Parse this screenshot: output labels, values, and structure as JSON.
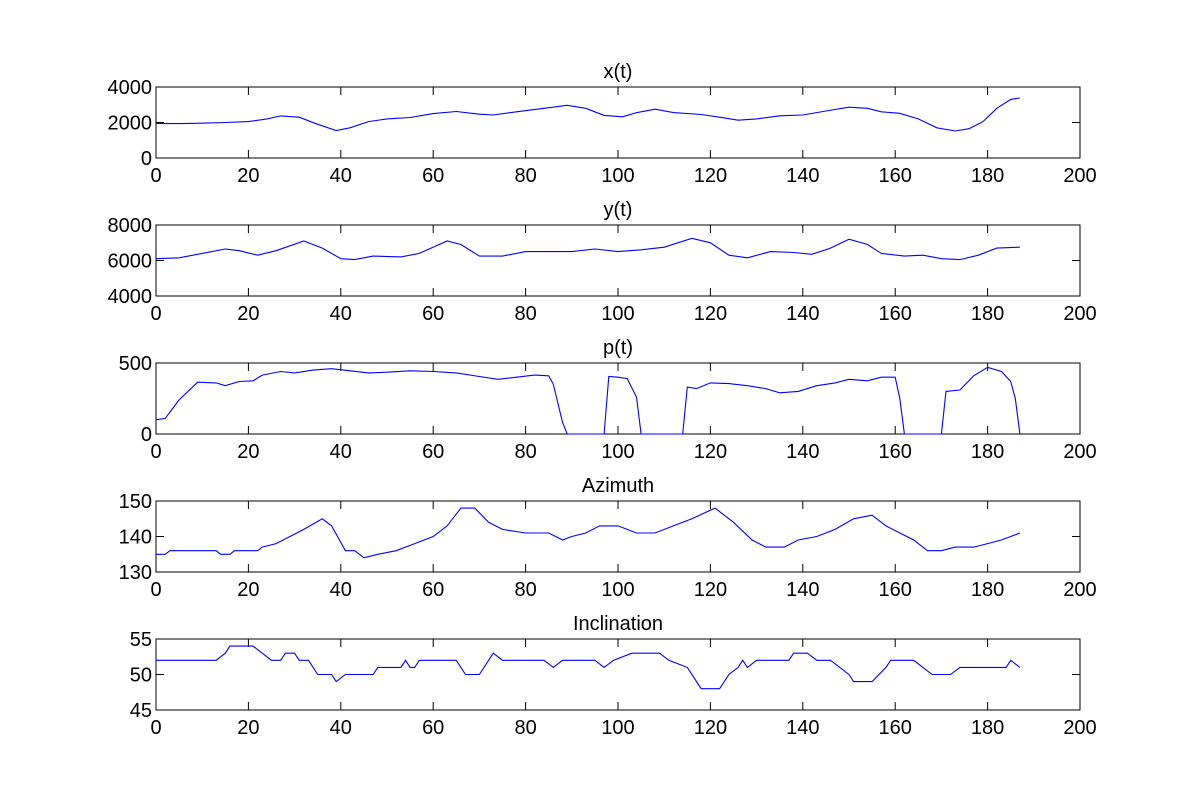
{
  "chart_data": [
    {
      "type": "line",
      "title": "x(t)",
      "xlim": [
        0,
        200
      ],
      "ylim": [
        0,
        4000
      ],
      "xticks": [
        0,
        20,
        40,
        60,
        80,
        100,
        120,
        140,
        160,
        180,
        200
      ],
      "yticks": [
        0,
        2000,
        4000
      ],
      "series_color": "#0000ff",
      "points": [
        [
          0,
          1950
        ],
        [
          5,
          1940
        ],
        [
          10,
          1960
        ],
        [
          15,
          2000
        ],
        [
          20,
          2050
        ],
        [
          24,
          2200
        ],
        [
          27,
          2370
        ],
        [
          31,
          2300
        ],
        [
          35,
          1900
        ],
        [
          39,
          1550
        ],
        [
          42,
          1700
        ],
        [
          46,
          2050
        ],
        [
          50,
          2200
        ],
        [
          55,
          2280
        ],
        [
          60,
          2500
        ],
        [
          65,
          2620
        ],
        [
          70,
          2470
        ],
        [
          73,
          2420
        ],
        [
          78,
          2600
        ],
        [
          84,
          2800
        ],
        [
          89,
          2970
        ],
        [
          93,
          2800
        ],
        [
          97,
          2400
        ],
        [
          101,
          2320
        ],
        [
          104,
          2550
        ],
        [
          108,
          2750
        ],
        [
          112,
          2560
        ],
        [
          118,
          2450
        ],
        [
          122,
          2300
        ],
        [
          126,
          2130
        ],
        [
          130,
          2200
        ],
        [
          135,
          2380
        ],
        [
          140,
          2420
        ],
        [
          145,
          2650
        ],
        [
          150,
          2860
        ],
        [
          154,
          2800
        ],
        [
          157,
          2600
        ],
        [
          161,
          2520
        ],
        [
          165,
          2200
        ],
        [
          169,
          1700
        ],
        [
          173,
          1520
        ],
        [
          176,
          1650
        ],
        [
          179,
          2050
        ],
        [
          182,
          2800
        ],
        [
          185,
          3300
        ],
        [
          187,
          3380
        ]
      ]
    },
    {
      "type": "line",
      "title": "y(t)",
      "xlim": [
        0,
        200
      ],
      "ylim": [
        4000,
        8000
      ],
      "xticks": [
        0,
        20,
        40,
        60,
        80,
        100,
        120,
        140,
        160,
        180,
        200
      ],
      "yticks": [
        4000,
        6000,
        8000
      ],
      "series_color": "#0000ff",
      "points": [
        [
          0,
          6100
        ],
        [
          5,
          6150
        ],
        [
          10,
          6400
        ],
        [
          15,
          6650
        ],
        [
          18,
          6550
        ],
        [
          22,
          6300
        ],
        [
          26,
          6550
        ],
        [
          32,
          7100
        ],
        [
          36,
          6700
        ],
        [
          40,
          6100
        ],
        [
          43,
          6050
        ],
        [
          47,
          6250
        ],
        [
          53,
          6200
        ],
        [
          57,
          6400
        ],
        [
          63,
          7100
        ],
        [
          66,
          6900
        ],
        [
          70,
          6250
        ],
        [
          75,
          6250
        ],
        [
          80,
          6500
        ],
        [
          85,
          6500
        ],
        [
          90,
          6500
        ],
        [
          95,
          6650
        ],
        [
          100,
          6500
        ],
        [
          105,
          6600
        ],
        [
          110,
          6750
        ],
        [
          116,
          7250
        ],
        [
          120,
          7000
        ],
        [
          124,
          6300
        ],
        [
          128,
          6150
        ],
        [
          133,
          6500
        ],
        [
          138,
          6450
        ],
        [
          142,
          6350
        ],
        [
          146,
          6700
        ],
        [
          150,
          7200
        ],
        [
          154,
          6900
        ],
        [
          157,
          6400
        ],
        [
          162,
          6250
        ],
        [
          166,
          6300
        ],
        [
          170,
          6100
        ],
        [
          174,
          6050
        ],
        [
          178,
          6300
        ],
        [
          182,
          6700
        ],
        [
          187,
          6750
        ]
      ]
    },
    {
      "type": "line",
      "title": "p(t)",
      "xlim": [
        0,
        200
      ],
      "ylim": [
        0,
        500
      ],
      "xticks": [
        0,
        20,
        40,
        60,
        80,
        100,
        120,
        140,
        160,
        180,
        200
      ],
      "yticks": [
        0,
        500
      ],
      "series_color": "#0000ff",
      "points": [
        [
          0,
          100
        ],
        [
          2,
          110
        ],
        [
          5,
          240
        ],
        [
          9,
          365
        ],
        [
          13,
          360
        ],
        [
          15,
          340
        ],
        [
          18,
          370
        ],
        [
          21,
          375
        ],
        [
          23,
          415
        ],
        [
          27,
          440
        ],
        [
          30,
          430
        ],
        [
          34,
          450
        ],
        [
          38,
          460
        ],
        [
          42,
          445
        ],
        [
          46,
          430
        ],
        [
          50,
          435
        ],
        [
          55,
          445
        ],
        [
          60,
          440
        ],
        [
          65,
          430
        ],
        [
          70,
          405
        ],
        [
          74,
          385
        ],
        [
          78,
          400
        ],
        [
          82,
          415
        ],
        [
          85,
          410
        ],
        [
          86,
          350
        ],
        [
          88,
          80
        ],
        [
          89,
          0
        ],
        [
          97,
          0
        ],
        [
          98,
          405
        ],
        [
          100,
          400
        ],
        [
          102,
          390
        ],
        [
          104,
          260
        ],
        [
          105,
          0
        ],
        [
          114,
          0
        ],
        [
          115,
          330
        ],
        [
          117,
          320
        ],
        [
          120,
          360
        ],
        [
          124,
          355
        ],
        [
          128,
          340
        ],
        [
          132,
          320
        ],
        [
          135,
          290
        ],
        [
          139,
          300
        ],
        [
          143,
          340
        ],
        [
          147,
          360
        ],
        [
          150,
          385
        ],
        [
          154,
          375
        ],
        [
          157,
          400
        ],
        [
          160,
          400
        ],
        [
          161,
          250
        ],
        [
          162,
          0
        ],
        [
          170,
          0
        ],
        [
          171,
          300
        ],
        [
          174,
          310
        ],
        [
          177,
          410
        ],
        [
          180,
          470
        ],
        [
          183,
          440
        ],
        [
          185,
          370
        ],
        [
          186,
          250
        ],
        [
          187,
          0
        ]
      ]
    },
    {
      "type": "line",
      "title": "Azimuth",
      "xlim": [
        0,
        200
      ],
      "ylim": [
        130,
        150
      ],
      "xticks": [
        0,
        20,
        40,
        60,
        80,
        100,
        120,
        140,
        160,
        180,
        200
      ],
      "yticks": [
        130,
        140,
        150
      ],
      "series_color": "#0000ff",
      "points": [
        [
          0,
          135
        ],
        [
          2,
          135
        ],
        [
          3,
          136
        ],
        [
          13,
          136
        ],
        [
          14,
          135
        ],
        [
          16,
          135
        ],
        [
          17,
          136
        ],
        [
          22,
          136
        ],
        [
          23,
          137
        ],
        [
          26,
          138
        ],
        [
          29,
          140
        ],
        [
          32,
          142
        ],
        [
          36,
          145
        ],
        [
          38,
          143
        ],
        [
          41,
          136
        ],
        [
          43,
          136
        ],
        [
          45,
          134
        ],
        [
          48,
          135
        ],
        [
          52,
          136
        ],
        [
          56,
          138
        ],
        [
          60,
          140
        ],
        [
          63,
          143
        ],
        [
          66,
          148
        ],
        [
          69,
          148
        ],
        [
          72,
          144
        ],
        [
          75,
          142
        ],
        [
          80,
          141
        ],
        [
          85,
          141
        ],
        [
          88,
          139
        ],
        [
          90,
          140
        ],
        [
          93,
          141
        ],
        [
          96,
          143
        ],
        [
          100,
          143
        ],
        [
          102,
          142
        ],
        [
          104,
          141
        ],
        [
          108,
          141
        ],
        [
          112,
          143
        ],
        [
          116,
          145
        ],
        [
          121,
          148
        ],
        [
          125,
          144
        ],
        [
          129,
          139
        ],
        [
          132,
          137
        ],
        [
          136,
          137
        ],
        [
          139,
          139
        ],
        [
          143,
          140
        ],
        [
          147,
          142
        ],
        [
          151,
          145
        ],
        [
          155,
          146
        ],
        [
          158,
          143
        ],
        [
          161,
          141
        ],
        [
          164,
          139
        ],
        [
          167,
          136
        ],
        [
          170,
          136
        ],
        [
          173,
          137
        ],
        [
          177,
          137
        ],
        [
          180,
          138
        ],
        [
          183,
          139
        ],
        [
          185,
          140
        ],
        [
          187,
          141
        ]
      ]
    },
    {
      "type": "line",
      "title": "Inclination",
      "xlim": [
        0,
        200
      ],
      "ylim": [
        45,
        55
      ],
      "xticks": [
        0,
        20,
        40,
        60,
        80,
        100,
        120,
        140,
        160,
        180,
        200
      ],
      "yticks": [
        45,
        50,
        55
      ],
      "series_color": "#0000ff",
      "points": [
        [
          0,
          52
        ],
        [
          13,
          52
        ],
        [
          15,
          53
        ],
        [
          16,
          54
        ],
        [
          21,
          54
        ],
        [
          23,
          53
        ],
        [
          25,
          52
        ],
        [
          27,
          52
        ],
        [
          28,
          53
        ],
        [
          30,
          53
        ],
        [
          31,
          52
        ],
        [
          33,
          52
        ],
        [
          35,
          50
        ],
        [
          38,
          50
        ],
        [
          39,
          49
        ],
        [
          41,
          50
        ],
        [
          47,
          50
        ],
        [
          48,
          51
        ],
        [
          53,
          51
        ],
        [
          54,
          52
        ],
        [
          55,
          51
        ],
        [
          56,
          51
        ],
        [
          57,
          52
        ],
        [
          65,
          52
        ],
        [
          67,
          50
        ],
        [
          70,
          50
        ],
        [
          72,
          52
        ],
        [
          73,
          53
        ],
        [
          75,
          52
        ],
        [
          84,
          52
        ],
        [
          86,
          51
        ],
        [
          88,
          52
        ],
        [
          95,
          52
        ],
        [
          97,
          51
        ],
        [
          99,
          52
        ],
        [
          103,
          53
        ],
        [
          109,
          53
        ],
        [
          111,
          52
        ],
        [
          115,
          51
        ],
        [
          117,
          49
        ],
        [
          118,
          48
        ],
        [
          122,
          48
        ],
        [
          124,
          50
        ],
        [
          126,
          51
        ],
        [
          127,
          52
        ],
        [
          128,
          51
        ],
        [
          130,
          52
        ],
        [
          137,
          52
        ],
        [
          138,
          53
        ],
        [
          141,
          53
        ],
        [
          143,
          52
        ],
        [
          146,
          52
        ],
        [
          150,
          50
        ],
        [
          151,
          49
        ],
        [
          155,
          49
        ],
        [
          158,
          51
        ],
        [
          159,
          52
        ],
        [
          164,
          52
        ],
        [
          166,
          51
        ],
        [
          168,
          50
        ],
        [
          172,
          50
        ],
        [
          174,
          51
        ],
        [
          184,
          51
        ],
        [
          185,
          52
        ],
        [
          187,
          51
        ]
      ]
    }
  ]
}
